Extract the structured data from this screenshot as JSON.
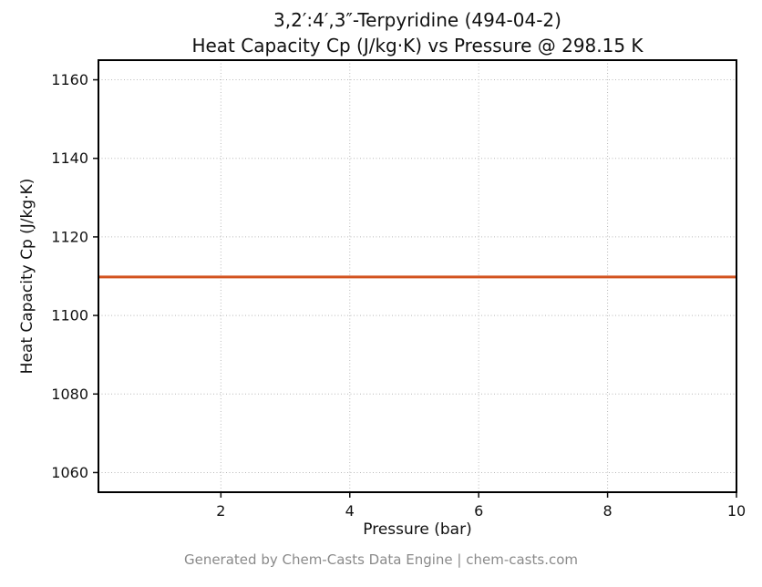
{
  "chart_data": {
    "type": "line",
    "title_line1": "3,2′:4′,3″-Terpyridine (494-04-2)",
    "title_line2": "Heat Capacity Cp (J/kg·K) vs Pressure @ 298.15 K",
    "xlabel": "Pressure (bar)",
    "ylabel": "Heat Capacity Cp (J/kg·K)",
    "footer": "Generated by Chem-Casts Data Engine | chem-casts.com",
    "series": [
      {
        "name": "Heat Capacity Cp",
        "color": "#d2521e",
        "x": [
          0.1,
          10.0
        ],
        "y": [
          1109.8,
          1109.8
        ]
      }
    ],
    "xlim": [
      0.1,
      10.0
    ],
    "ylim": [
      1055,
      1165
    ],
    "xticks": [
      2,
      4,
      6,
      8,
      10
    ],
    "yticks": [
      1060,
      1080,
      1100,
      1120,
      1140,
      1160
    ],
    "grid": true,
    "legend_visible": false,
    "line_width": 3,
    "spine_color": "#000000"
  }
}
